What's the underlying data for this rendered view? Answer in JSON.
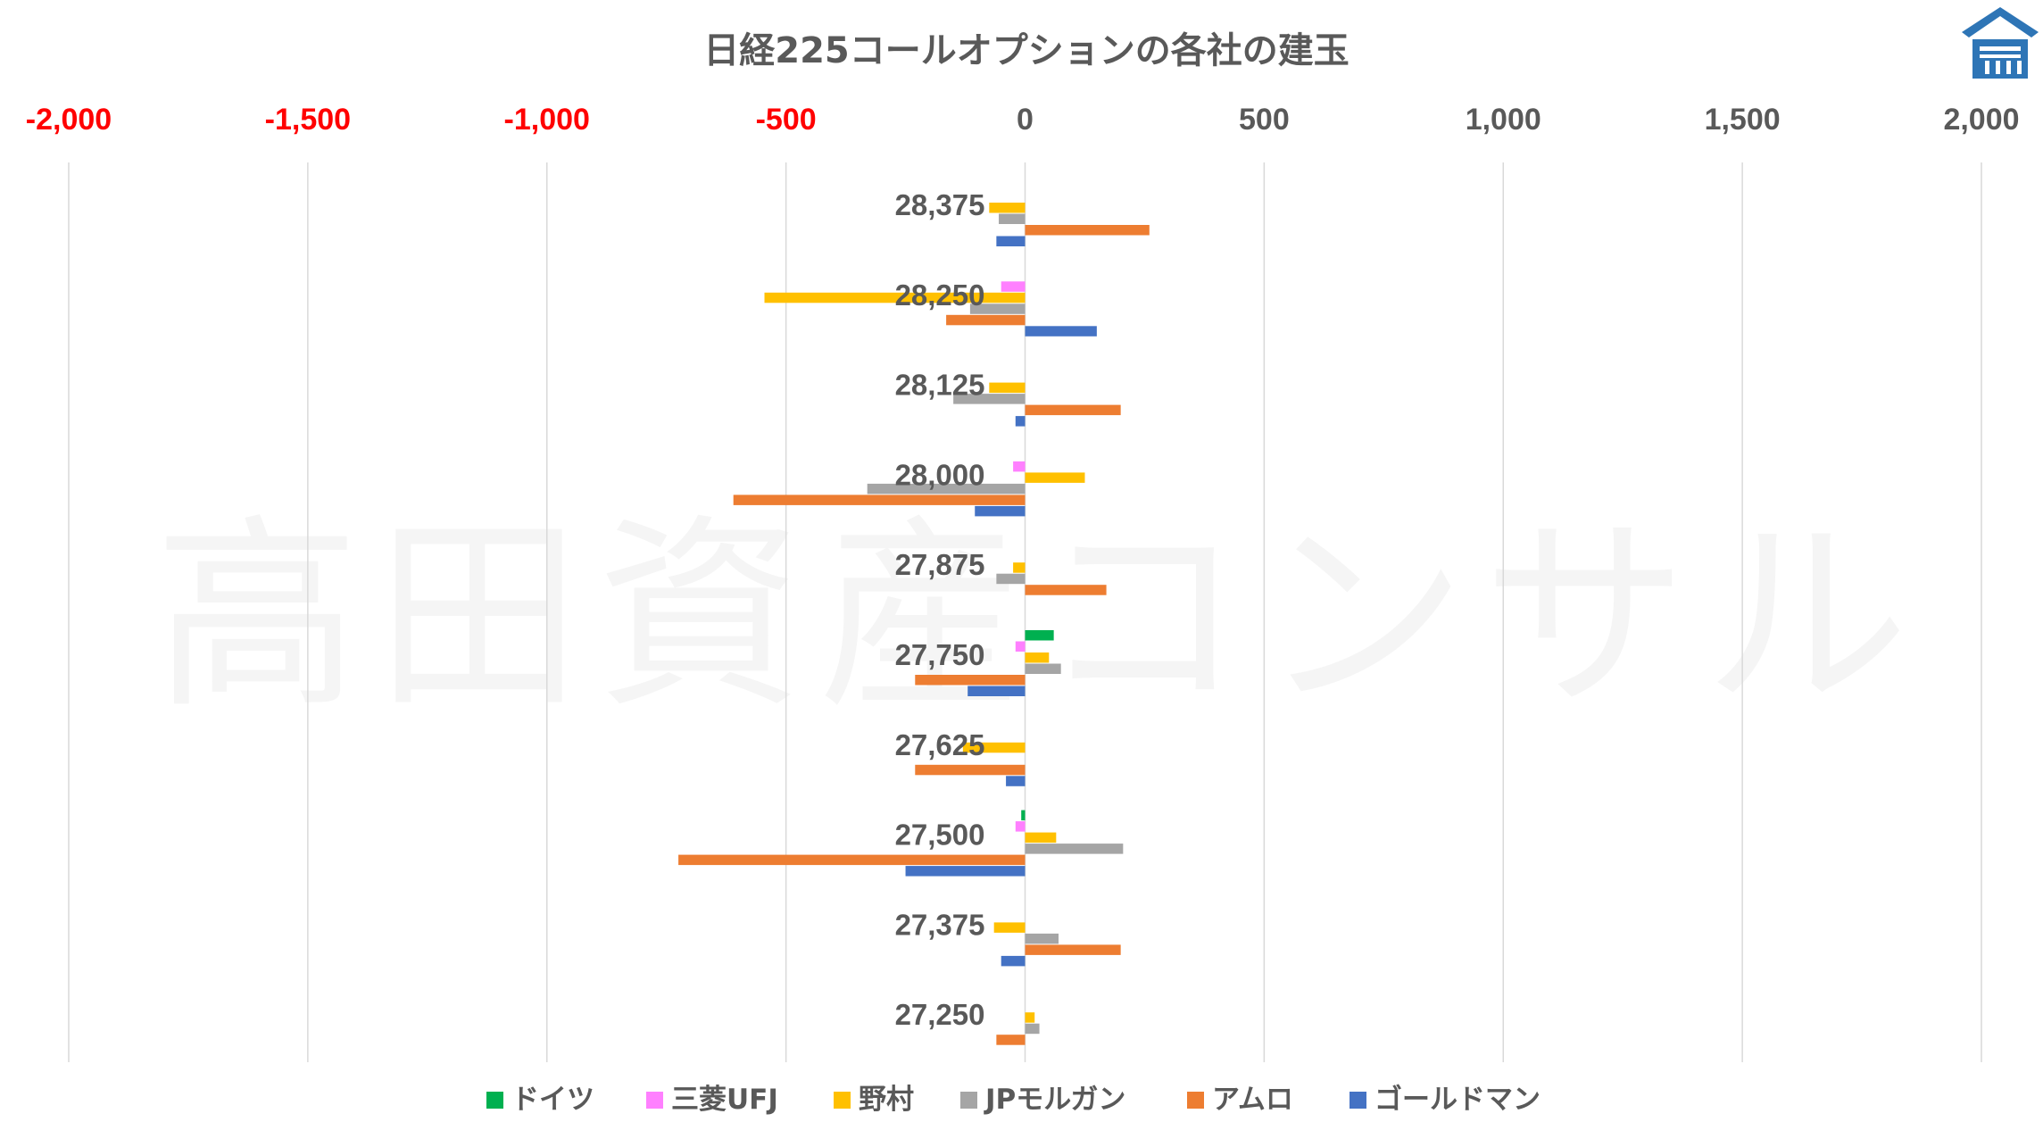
{
  "chart_data": {
    "type": "bar",
    "orientation": "horizontal",
    "title": "日経225コールオプションの各社の建玉",
    "xlabel": "",
    "ylabel": "",
    "xlim": [
      -2000,
      2000
    ],
    "x_ticks": [
      -2000,
      -1500,
      -1000,
      -500,
      0,
      500,
      1000,
      1500,
      2000
    ],
    "x_tick_labels": [
      "-2,000",
      "-1,500",
      "-1,000",
      "-500",
      "0",
      "500",
      "1,000",
      "1,500",
      "2,000"
    ],
    "negative_tick_color": "#ff0000",
    "positive_tick_color": "#595959",
    "grid": "vertical",
    "legend_position": "bottom",
    "categories": [
      "28,375",
      "28,250",
      "28,125",
      "28,000",
      "27,875",
      "27,750",
      "27,625",
      "27,500",
      "27,375",
      "27,250"
    ],
    "series": [
      {
        "name": "ドイツ",
        "color": "#00b050",
        "values": [
          0,
          0,
          0,
          0,
          0,
          60,
          0,
          -8,
          0,
          0
        ]
      },
      {
        "name": "三菱UFJ",
        "color": "#ff80ff",
        "values": [
          0,
          -50,
          0,
          -25,
          0,
          -20,
          0,
          -20,
          0,
          0
        ]
      },
      {
        "name": "野村",
        "color": "#ffc000",
        "values": [
          -75,
          -545,
          -75,
          125,
          -25,
          50,
          -130,
          65,
          -65,
          20
        ]
      },
      {
        "name": "JPモルガン",
        "color": "#a5a5a5",
        "values": [
          -55,
          -115,
          -150,
          -330,
          -60,
          75,
          0,
          205,
          70,
          30
        ]
      },
      {
        "name": "アムロ",
        "color": "#ed7d31",
        "values": [
          260,
          -165,
          200,
          -610,
          170,
          -230,
          -230,
          -725,
          200,
          -60
        ]
      },
      {
        "name": "ゴールドマン",
        "color": "#4472c4",
        "values": [
          -60,
          150,
          -20,
          -105,
          0,
          -120,
          -40,
          -250,
          -50,
          0
        ]
      }
    ]
  },
  "watermark": {
    "text": "高田資産コンサル",
    "color": "#ededed"
  },
  "logo": {
    "icon": "house-building-logo-icon",
    "color": "#2e75b6"
  }
}
